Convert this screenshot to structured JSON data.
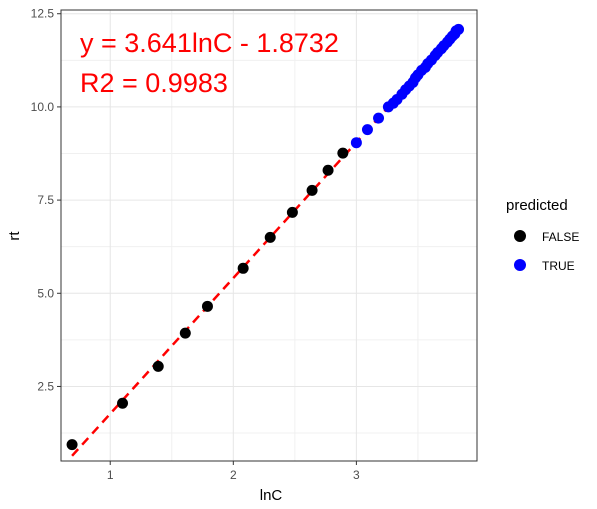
{
  "chart_data": {
    "type": "scatter",
    "title": "",
    "xlabel": "lnC",
    "ylabel": "rt",
    "xlim": [
      0.6,
      3.98
    ],
    "ylim": [
      0.5,
      12.6
    ],
    "x_ticks": [
      1,
      2,
      3
    ],
    "x_tick_labels": [
      "1",
      "2",
      "3"
    ],
    "y_ticks": [
      2.5,
      5.0,
      7.5,
      10.0,
      12.5
    ],
    "y_tick_labels": [
      "2.5",
      "5.0",
      "7.5",
      "10.0",
      "12.5"
    ],
    "grid": true,
    "legend": {
      "title": "predicted",
      "position": "right",
      "entries": [
        {
          "label": "FALSE",
          "color": "#000000"
        },
        {
          "label": "TRUE",
          "color": "#0000ff"
        }
      ]
    },
    "annotations": [
      "y = 3.641lnC - 1.8732",
      "R2 = 0.9983"
    ],
    "annotation_color": "#ff0000",
    "fit_line": {
      "slope": 3.641,
      "intercept": -1.8732,
      "x_range": [
        0.69,
        3.85
      ],
      "color": "#ff0000",
      "style": "dashed"
    },
    "series": [
      {
        "name": "FALSE",
        "color": "#000000",
        "points": [
          [
            0.69,
            0.94
          ],
          [
            1.1,
            2.05
          ],
          [
            1.39,
            3.04
          ],
          [
            1.61,
            3.93
          ],
          [
            1.79,
            4.65
          ],
          [
            2.08,
            5.67
          ],
          [
            2.3,
            6.5
          ],
          [
            2.48,
            7.17
          ],
          [
            2.64,
            7.76
          ],
          [
            2.77,
            8.3
          ],
          [
            2.89,
            8.76
          ]
        ]
      },
      {
        "name": "TRUE",
        "color": "#0000ff",
        "points": [
          [
            3.0,
            9.04
          ],
          [
            3.09,
            9.39
          ],
          [
            3.18,
            9.7
          ],
          [
            3.26,
            10.0
          ],
          [
            3.3,
            10.1
          ],
          [
            3.33,
            10.2
          ],
          [
            3.37,
            10.34
          ],
          [
            3.4,
            10.46
          ],
          [
            3.43,
            10.56
          ],
          [
            3.46,
            10.66
          ],
          [
            3.48,
            10.78
          ],
          [
            3.5,
            10.86
          ],
          [
            3.53,
            10.98
          ],
          [
            3.56,
            11.06
          ],
          [
            3.58,
            11.16
          ],
          [
            3.61,
            11.26
          ],
          [
            3.64,
            11.38
          ],
          [
            3.66,
            11.46
          ],
          [
            3.69,
            11.56
          ],
          [
            3.71,
            11.64
          ],
          [
            3.74,
            11.74
          ],
          [
            3.76,
            11.82
          ],
          [
            3.78,
            11.9
          ],
          [
            3.8,
            11.96
          ],
          [
            3.81,
            12.04
          ],
          [
            3.83,
            12.08
          ]
        ]
      }
    ]
  }
}
